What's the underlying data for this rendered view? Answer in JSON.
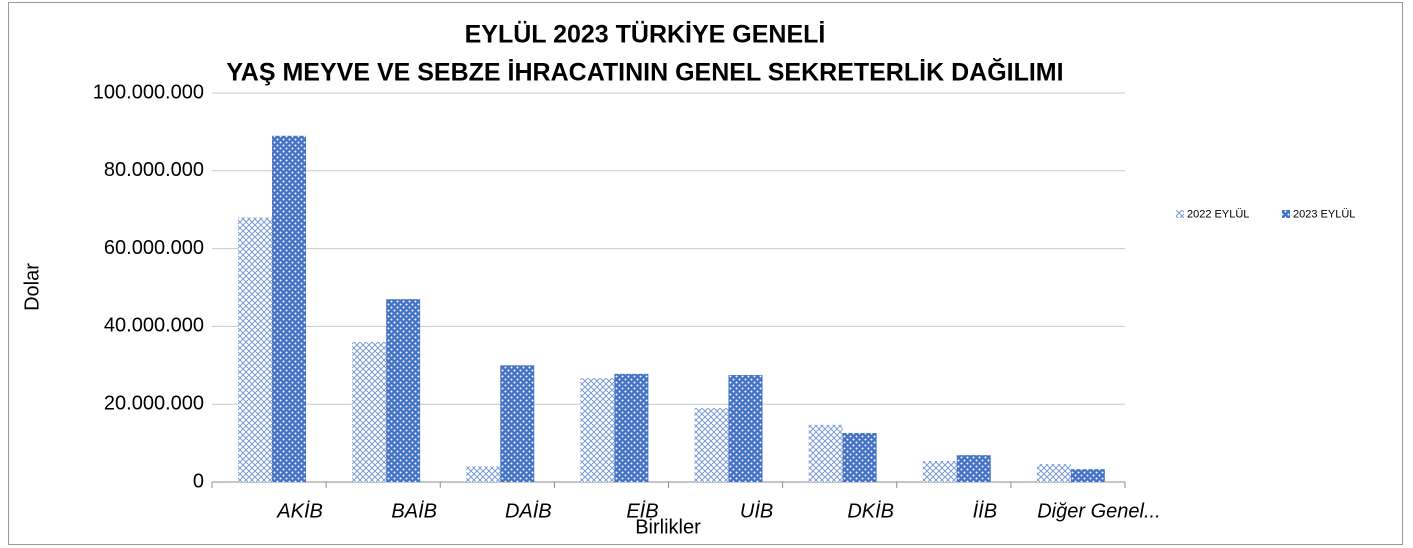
{
  "chart_data": {
    "type": "bar",
    "title": [
      "EYLÜL 2023 TÜRKİYE GENELİ",
      "YAŞ MEYVE VE SEBZE İHRACATININ GENEL SEKRETERLİK DAĞILIMI"
    ],
    "x_label": "Birlikler",
    "y_label": "Dolar",
    "categories": [
      "AKİB",
      "BAİB",
      "DAİB",
      "EİB",
      "UİB",
      "DKİB",
      "İİB",
      "Diğer Genel..."
    ],
    "series": [
      {
        "name": "2022 EYLÜL",
        "color": "#4472c4",
        "pattern": "crosshatch",
        "values": [
          68000000,
          36000000,
          4000000,
          26700000,
          19000000,
          14700000,
          5400000,
          4600000
        ]
      },
      {
        "name": "2023 EYLÜL",
        "color": "#4472c4",
        "pattern": "dots",
        "values": [
          89000000,
          47000000,
          30000000,
          27800000,
          27500000,
          12600000,
          6900000,
          3300000
        ]
      }
    ],
    "ylim": [
      0,
      100000000
    ],
    "yticks": [
      0,
      {
        "value": 20000000,
        "label": "20.000.000"
      },
      {
        "value": 40000000,
        "label": "40.000.000"
      },
      {
        "value": 60000000,
        "label": "60.000.000"
      },
      {
        "value": 80000000,
        "label": "80.000.000"
      },
      {
        "value": 100000000,
        "label": "100.000.000"
      }
    ],
    "grid": true,
    "legend": "right"
  }
}
